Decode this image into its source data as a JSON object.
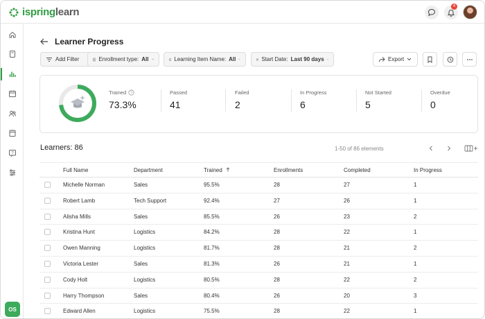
{
  "app": {
    "logo_text_a": "ispring",
    "logo_text_b": "learn",
    "brand_color": "#2f9e44",
    "notification_count": "4",
    "user_initials": "OS"
  },
  "sidebar": {
    "items": [
      {
        "icon": "home-icon"
      },
      {
        "icon": "book-icon"
      },
      {
        "icon": "reports-chart-icon",
        "active": true
      },
      {
        "icon": "calendar-icon"
      },
      {
        "icon": "users-icon"
      },
      {
        "icon": "assignments-icon"
      },
      {
        "icon": "help-icon"
      },
      {
        "icon": "settings-sliders-icon"
      }
    ]
  },
  "page": {
    "title": "Learner Progress"
  },
  "toolbar": {
    "add_filter": "Add Filter",
    "enrollment_label": "Enrollment type:",
    "enrollment_value": "All",
    "item_label": "Learning Item Name:",
    "item_value": "All",
    "date_label": "Start Date:",
    "date_value": "Last 90 days",
    "export": "Export"
  },
  "stats": {
    "trained_label": "Trained",
    "trained_value": "73.3%",
    "trained_fraction": 0.733,
    "passed_label": "Passed",
    "passed_value": "41",
    "failed_label": "Failed",
    "failed_value": "2",
    "inprogress_label": "In Progress",
    "inprogress_value": "6",
    "notstarted_label": "Not Started",
    "notstarted_value": "5",
    "overdue_label": "Overdue",
    "overdue_value": "0"
  },
  "learners": {
    "title": "Learners: 86",
    "range": "1-50 of 86 elements"
  },
  "table": {
    "headers": [
      "Full Name",
      "Department",
      "Trained",
      "Enrollments",
      "Completed",
      "In Progress"
    ],
    "sorted_column": "Trained",
    "rows": [
      [
        "Michelle Norman",
        "Sales",
        "95.5%",
        "28",
        "27",
        "1"
      ],
      [
        "Robert Lamb",
        "Tech Support",
        "92.4%",
        "27",
        "26",
        "1"
      ],
      [
        "Alisha Mills",
        "Sales",
        "85.5%",
        "26",
        "23",
        "2"
      ],
      [
        "Kristina Hunt",
        "Logistics",
        "84.2%",
        "28",
        "22",
        "1"
      ],
      [
        "Owen Manning",
        "Logistics",
        "81.7%",
        "28",
        "21",
        "2"
      ],
      [
        "Victoria Lester",
        "Sales",
        "81.3%",
        "26",
        "21",
        "1"
      ],
      [
        "Cody Holt",
        "Logistics",
        "80.5%",
        "28",
        "22",
        "2"
      ],
      [
        "Harry Thompson",
        "Sales",
        "80.4%",
        "26",
        "20",
        "3"
      ],
      [
        "Edward Allen",
        "Logistics",
        "75.5%",
        "28",
        "22",
        "1"
      ]
    ]
  }
}
